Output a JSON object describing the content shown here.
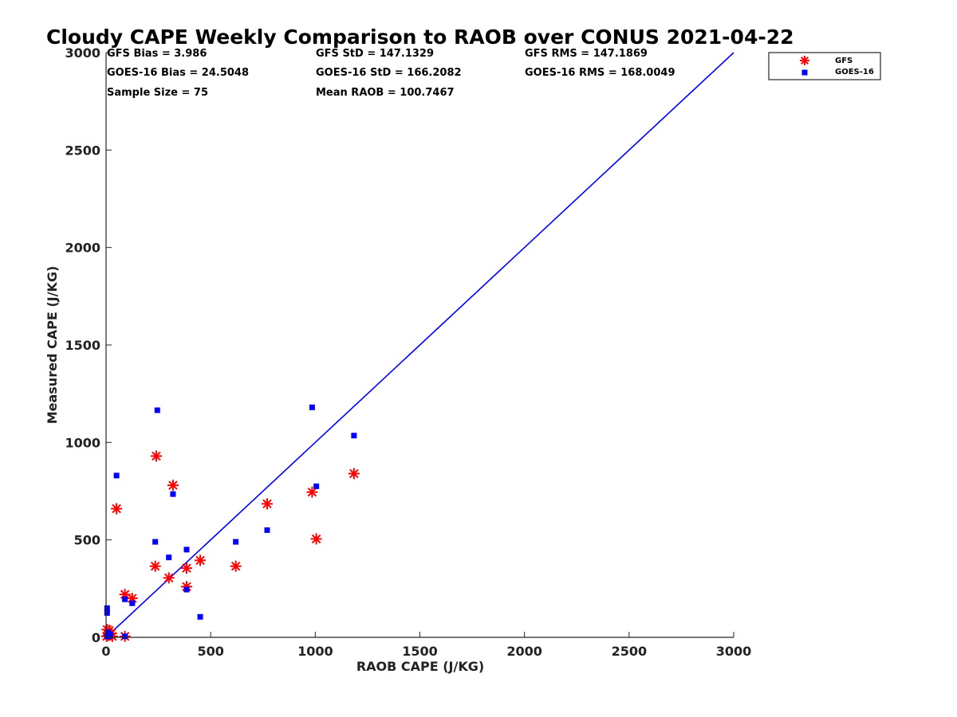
{
  "chart_data": {
    "type": "scatter",
    "title": "Cloudy CAPE Weekly Comparison to RAOB over CONUS 2021-04-22",
    "xlabel": "RAOB CAPE (J/KG)",
    "ylabel": "Measured CAPE (J/KG)",
    "xlim": [
      0,
      3000
    ],
    "ylim": [
      0,
      3000
    ],
    "x_ticks": [
      "0",
      "500",
      "1000",
      "1500",
      "2000",
      "2500",
      "3000"
    ],
    "y_ticks": [
      "0",
      "500",
      "1000",
      "1500",
      "2000",
      "2500",
      "3000"
    ],
    "grid": false,
    "legend_position": "outside top-right",
    "stats": [
      [
        "GFS Bias = 3.986",
        "GFS StD = 147.1329",
        "GFS RMS = 147.1869"
      ],
      [
        "GOES-16 Bias = 24.5048",
        "GOES-16 StD = 166.2082",
        "GOES-16 RMS = 168.0049"
      ],
      [
        "Sample Size = 75",
        "Mean RAOB = 100.7467",
        ""
      ]
    ],
    "reference_line": {
      "x": [
        0,
        3000
      ],
      "y": [
        0,
        3000
      ],
      "color": "#0000ff"
    },
    "series": [
      {
        "name": "GFS",
        "marker": "asterisk",
        "color": "#ff0000",
        "points": [
          [
            240,
            930
          ],
          [
            320,
            780
          ],
          [
            50,
            660
          ],
          [
            1185,
            840
          ],
          [
            770,
            685
          ],
          [
            985,
            745
          ],
          [
            1005,
            505
          ],
          [
            450,
            395
          ],
          [
            235,
            365
          ],
          [
            620,
            365
          ],
          [
            385,
            355
          ],
          [
            300,
            305
          ],
          [
            385,
            260
          ],
          [
            90,
            220
          ],
          [
            125,
            200
          ],
          [
            5,
            40
          ],
          [
            15,
            35
          ],
          [
            25,
            20
          ],
          [
            10,
            10
          ],
          [
            3,
            5
          ],
          [
            30,
            5
          ],
          [
            90,
            5
          ]
        ]
      },
      {
        "name": "GOES-16",
        "marker": "square",
        "color": "#0000ff",
        "points": [
          [
            985,
            1180
          ],
          [
            245,
            1165
          ],
          [
            1185,
            1035
          ],
          [
            50,
            830
          ],
          [
            1005,
            775
          ],
          [
            320,
            735
          ],
          [
            770,
            550
          ],
          [
            235,
            490
          ],
          [
            620,
            490
          ],
          [
            385,
            450
          ],
          [
            300,
            410
          ],
          [
            90,
            195
          ],
          [
            125,
            175
          ],
          [
            5,
            150
          ],
          [
            5,
            125
          ],
          [
            385,
            245
          ],
          [
            450,
            105
          ],
          [
            10,
            25
          ],
          [
            20,
            15
          ],
          [
            5,
            5
          ],
          [
            15,
            5
          ],
          [
            90,
            5
          ]
        ]
      }
    ]
  }
}
